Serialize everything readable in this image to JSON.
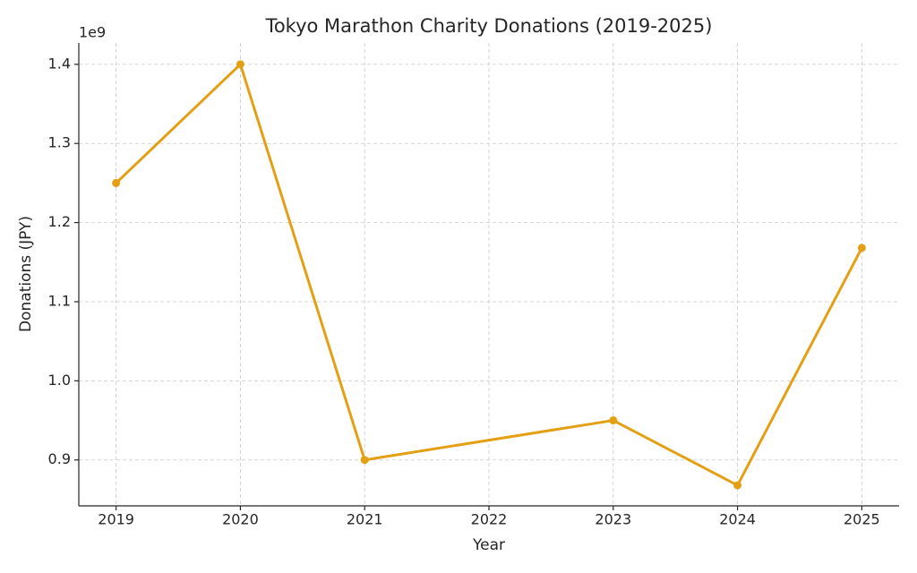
{
  "chart_data": {
    "type": "line",
    "title": "Tokyo Marathon Charity Donations (2019-2025)",
    "x_label": "Year",
    "y_label": "Donations (JPY)",
    "y_offset_label": "1e9",
    "x": [
      2019,
      2020,
      2021,
      2023,
      2024,
      2025
    ],
    "series": [
      {
        "name": "Donations",
        "color": "#e3a015",
        "values": [
          1250000000,
          1400000000,
          900000000,
          950000000,
          868000000,
          1168000000
        ]
      }
    ],
    "xlim": [
      2018.7,
      2025.3
    ],
    "xticks": [
      2019,
      2020,
      2021,
      2022,
      2023,
      2024,
      2025
    ],
    "ylim": [
      842000000,
      1427000000
    ],
    "yticks": [
      {
        "value": 900000000,
        "label": "0.9"
      },
      {
        "value": 1000000000,
        "label": "1.0"
      },
      {
        "value": 1100000000,
        "label": "1.1"
      },
      {
        "value": 1200000000,
        "label": "1.2"
      },
      {
        "value": 1300000000,
        "label": "1.3"
      },
      {
        "value": 1400000000,
        "label": "1.4"
      }
    ],
    "grid": true
  }
}
